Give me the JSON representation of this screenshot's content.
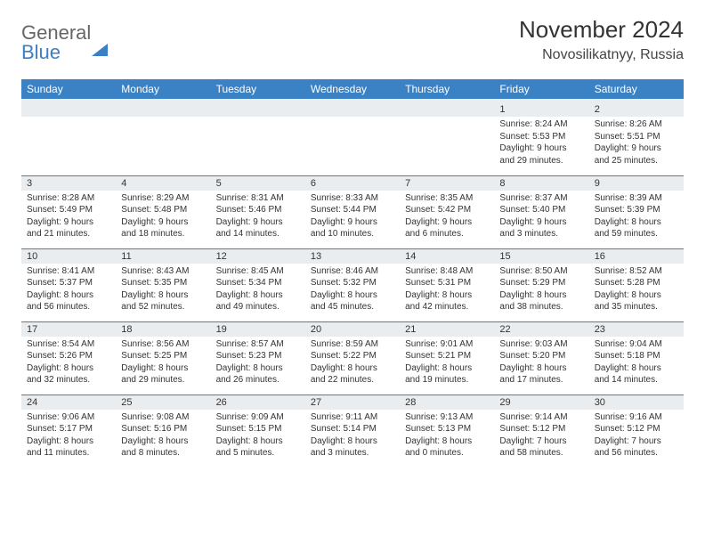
{
  "logo": {
    "general": "General",
    "blue": "Blue"
  },
  "title": "November 2024",
  "subtitle": "Novosilikatnyy, Russia",
  "colors": {
    "header_bg": "#3b82c4",
    "header_text": "#ffffff",
    "daynum_bg": "#e9edef",
    "border": "#3b82c4",
    "text": "#333333"
  },
  "weekdays": [
    "Sunday",
    "Monday",
    "Tuesday",
    "Wednesday",
    "Thursday",
    "Friday",
    "Saturday"
  ],
  "weeks": [
    [
      null,
      null,
      null,
      null,
      null,
      {
        "n": "1",
        "sr": "8:24 AM",
        "ss": "5:53 PM",
        "dl": "9 hours and 29 minutes."
      },
      {
        "n": "2",
        "sr": "8:26 AM",
        "ss": "5:51 PM",
        "dl": "9 hours and 25 minutes."
      }
    ],
    [
      {
        "n": "3",
        "sr": "8:28 AM",
        "ss": "5:49 PM",
        "dl": "9 hours and 21 minutes."
      },
      {
        "n": "4",
        "sr": "8:29 AM",
        "ss": "5:48 PM",
        "dl": "9 hours and 18 minutes."
      },
      {
        "n": "5",
        "sr": "8:31 AM",
        "ss": "5:46 PM",
        "dl": "9 hours and 14 minutes."
      },
      {
        "n": "6",
        "sr": "8:33 AM",
        "ss": "5:44 PM",
        "dl": "9 hours and 10 minutes."
      },
      {
        "n": "7",
        "sr": "8:35 AM",
        "ss": "5:42 PM",
        "dl": "9 hours and 6 minutes."
      },
      {
        "n": "8",
        "sr": "8:37 AM",
        "ss": "5:40 PM",
        "dl": "9 hours and 3 minutes."
      },
      {
        "n": "9",
        "sr": "8:39 AM",
        "ss": "5:39 PM",
        "dl": "8 hours and 59 minutes."
      }
    ],
    [
      {
        "n": "10",
        "sr": "8:41 AM",
        "ss": "5:37 PM",
        "dl": "8 hours and 56 minutes."
      },
      {
        "n": "11",
        "sr": "8:43 AM",
        "ss": "5:35 PM",
        "dl": "8 hours and 52 minutes."
      },
      {
        "n": "12",
        "sr": "8:45 AM",
        "ss": "5:34 PM",
        "dl": "8 hours and 49 minutes."
      },
      {
        "n": "13",
        "sr": "8:46 AM",
        "ss": "5:32 PM",
        "dl": "8 hours and 45 minutes."
      },
      {
        "n": "14",
        "sr": "8:48 AM",
        "ss": "5:31 PM",
        "dl": "8 hours and 42 minutes."
      },
      {
        "n": "15",
        "sr": "8:50 AM",
        "ss": "5:29 PM",
        "dl": "8 hours and 38 minutes."
      },
      {
        "n": "16",
        "sr": "8:52 AM",
        "ss": "5:28 PM",
        "dl": "8 hours and 35 minutes."
      }
    ],
    [
      {
        "n": "17",
        "sr": "8:54 AM",
        "ss": "5:26 PM",
        "dl": "8 hours and 32 minutes."
      },
      {
        "n": "18",
        "sr": "8:56 AM",
        "ss": "5:25 PM",
        "dl": "8 hours and 29 minutes."
      },
      {
        "n": "19",
        "sr": "8:57 AM",
        "ss": "5:23 PM",
        "dl": "8 hours and 26 minutes."
      },
      {
        "n": "20",
        "sr": "8:59 AM",
        "ss": "5:22 PM",
        "dl": "8 hours and 22 minutes."
      },
      {
        "n": "21",
        "sr": "9:01 AM",
        "ss": "5:21 PM",
        "dl": "8 hours and 19 minutes."
      },
      {
        "n": "22",
        "sr": "9:03 AM",
        "ss": "5:20 PM",
        "dl": "8 hours and 17 minutes."
      },
      {
        "n": "23",
        "sr": "9:04 AM",
        "ss": "5:18 PM",
        "dl": "8 hours and 14 minutes."
      }
    ],
    [
      {
        "n": "24",
        "sr": "9:06 AM",
        "ss": "5:17 PM",
        "dl": "8 hours and 11 minutes."
      },
      {
        "n": "25",
        "sr": "9:08 AM",
        "ss": "5:16 PM",
        "dl": "8 hours and 8 minutes."
      },
      {
        "n": "26",
        "sr": "9:09 AM",
        "ss": "5:15 PM",
        "dl": "8 hours and 5 minutes."
      },
      {
        "n": "27",
        "sr": "9:11 AM",
        "ss": "5:14 PM",
        "dl": "8 hours and 3 minutes."
      },
      {
        "n": "28",
        "sr": "9:13 AM",
        "ss": "5:13 PM",
        "dl": "8 hours and 0 minutes."
      },
      {
        "n": "29",
        "sr": "9:14 AM",
        "ss": "5:12 PM",
        "dl": "7 hours and 58 minutes."
      },
      {
        "n": "30",
        "sr": "9:16 AM",
        "ss": "5:12 PM",
        "dl": "7 hours and 56 minutes."
      }
    ]
  ],
  "labels": {
    "sunrise": "Sunrise:",
    "sunset": "Sunset:",
    "daylight": "Daylight:"
  }
}
